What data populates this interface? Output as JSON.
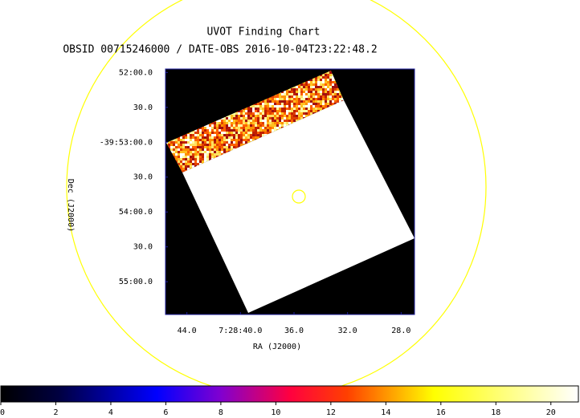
{
  "chart_data": {
    "type": "image",
    "title": "UVOT Finding Chart",
    "subtitle": "OBSID 00715246000 / DATE-OBS 2016-10-04T23:22:48.2",
    "xlabel": "RA (J2000)",
    "ylabel": "Dec (J2000)",
    "xlim": [
      45.6,
      27.0
    ],
    "xticks": [
      {
        "value": 44,
        "label": "44.0"
      },
      {
        "value": 40,
        "label": "7:28:40.0"
      },
      {
        "value": 36,
        "label": "36.0"
      },
      {
        "value": 32,
        "label": "32.0"
      },
      {
        "value": 28,
        "label": "28.0"
      }
    ],
    "ylim": [
      55.47,
      51.95
    ],
    "yticks": [
      {
        "value": 52,
        "label": "52:00.0"
      },
      {
        "value": 52.5,
        "label": "30.0"
      },
      {
        "value": 53,
        "label": "-39:53:00.0"
      },
      {
        "value": 53.5,
        "label": "30.0"
      },
      {
        "value": 54,
        "label": "54:00.0"
      },
      {
        "value": 54.5,
        "label": "30.0"
      },
      {
        "value": 55,
        "label": "55:00.0"
      }
    ],
    "colorbar": {
      "lim": [
        0,
        21
      ],
      "ticks": [
        0,
        2,
        4,
        6,
        8,
        10,
        12,
        14,
        16,
        18,
        20
      ]
    }
  }
}
